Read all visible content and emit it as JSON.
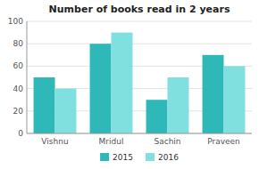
{
  "chart_data": {
    "type": "bar",
    "title": "Number of books read in 2 years",
    "categories": [
      "Vishnu",
      "Mridul",
      "Sachin",
      "Praveen"
    ],
    "series": [
      {
        "name": "2015",
        "color": "#2eb8b8",
        "values": [
          50,
          80,
          30,
          70
        ]
      },
      {
        "name": "2016",
        "color": "#80e0e0",
        "values": [
          40,
          90,
          50,
          60
        ]
      }
    ],
    "ylim": [
      0,
      100
    ],
    "yticks": [
      0,
      20,
      40,
      60,
      80,
      100
    ],
    "grid": true,
    "legend": "bottom"
  }
}
